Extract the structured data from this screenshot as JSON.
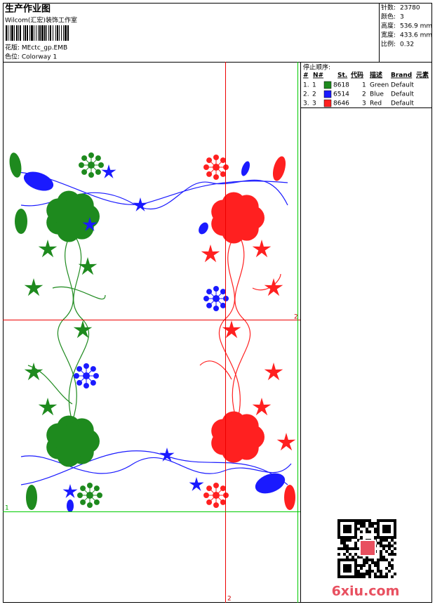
{
  "header": {
    "title": "生产作业图",
    "company": "Wilcom(汇宏)装饰工作室",
    "design": "花版:  MEctc_gp.EMB",
    "colorway": "色位:  Colorway 1"
  },
  "stats": [
    [
      "针数:",
      "23780"
    ],
    [
      "颜色:",
      "3"
    ],
    [
      "高度:",
      "536.9 mm"
    ],
    [
      "宽度:",
      "433.6 mm"
    ],
    [
      "比例:",
      "0.32"
    ]
  ],
  "stop_table": {
    "title": "停止顺序:",
    "headers": [
      "#",
      "N#",
      "St.",
      "代码",
      "描述",
      "Brand",
      "元素"
    ],
    "rows": [
      {
        "index": "1.",
        "needle": "1",
        "color": "#1e8a1e",
        "code": "8618",
        "number": "1",
        "description": "Green",
        "brand": "Default"
      },
      {
        "index": "2.",
        "needle": "2",
        "color": "#1a1aff",
        "code": "6514",
        "number": "2",
        "description": "Blue",
        "brand": "Default"
      },
      {
        "index": "3.",
        "needle": "3",
        "color": "#ff2020",
        "code": "8646",
        "number": "3",
        "description": "Red",
        "brand": "Default"
      }
    ]
  },
  "guide_labels": [
    "2",
    "2",
    "1"
  ],
  "watermark": "6xiu.com"
}
